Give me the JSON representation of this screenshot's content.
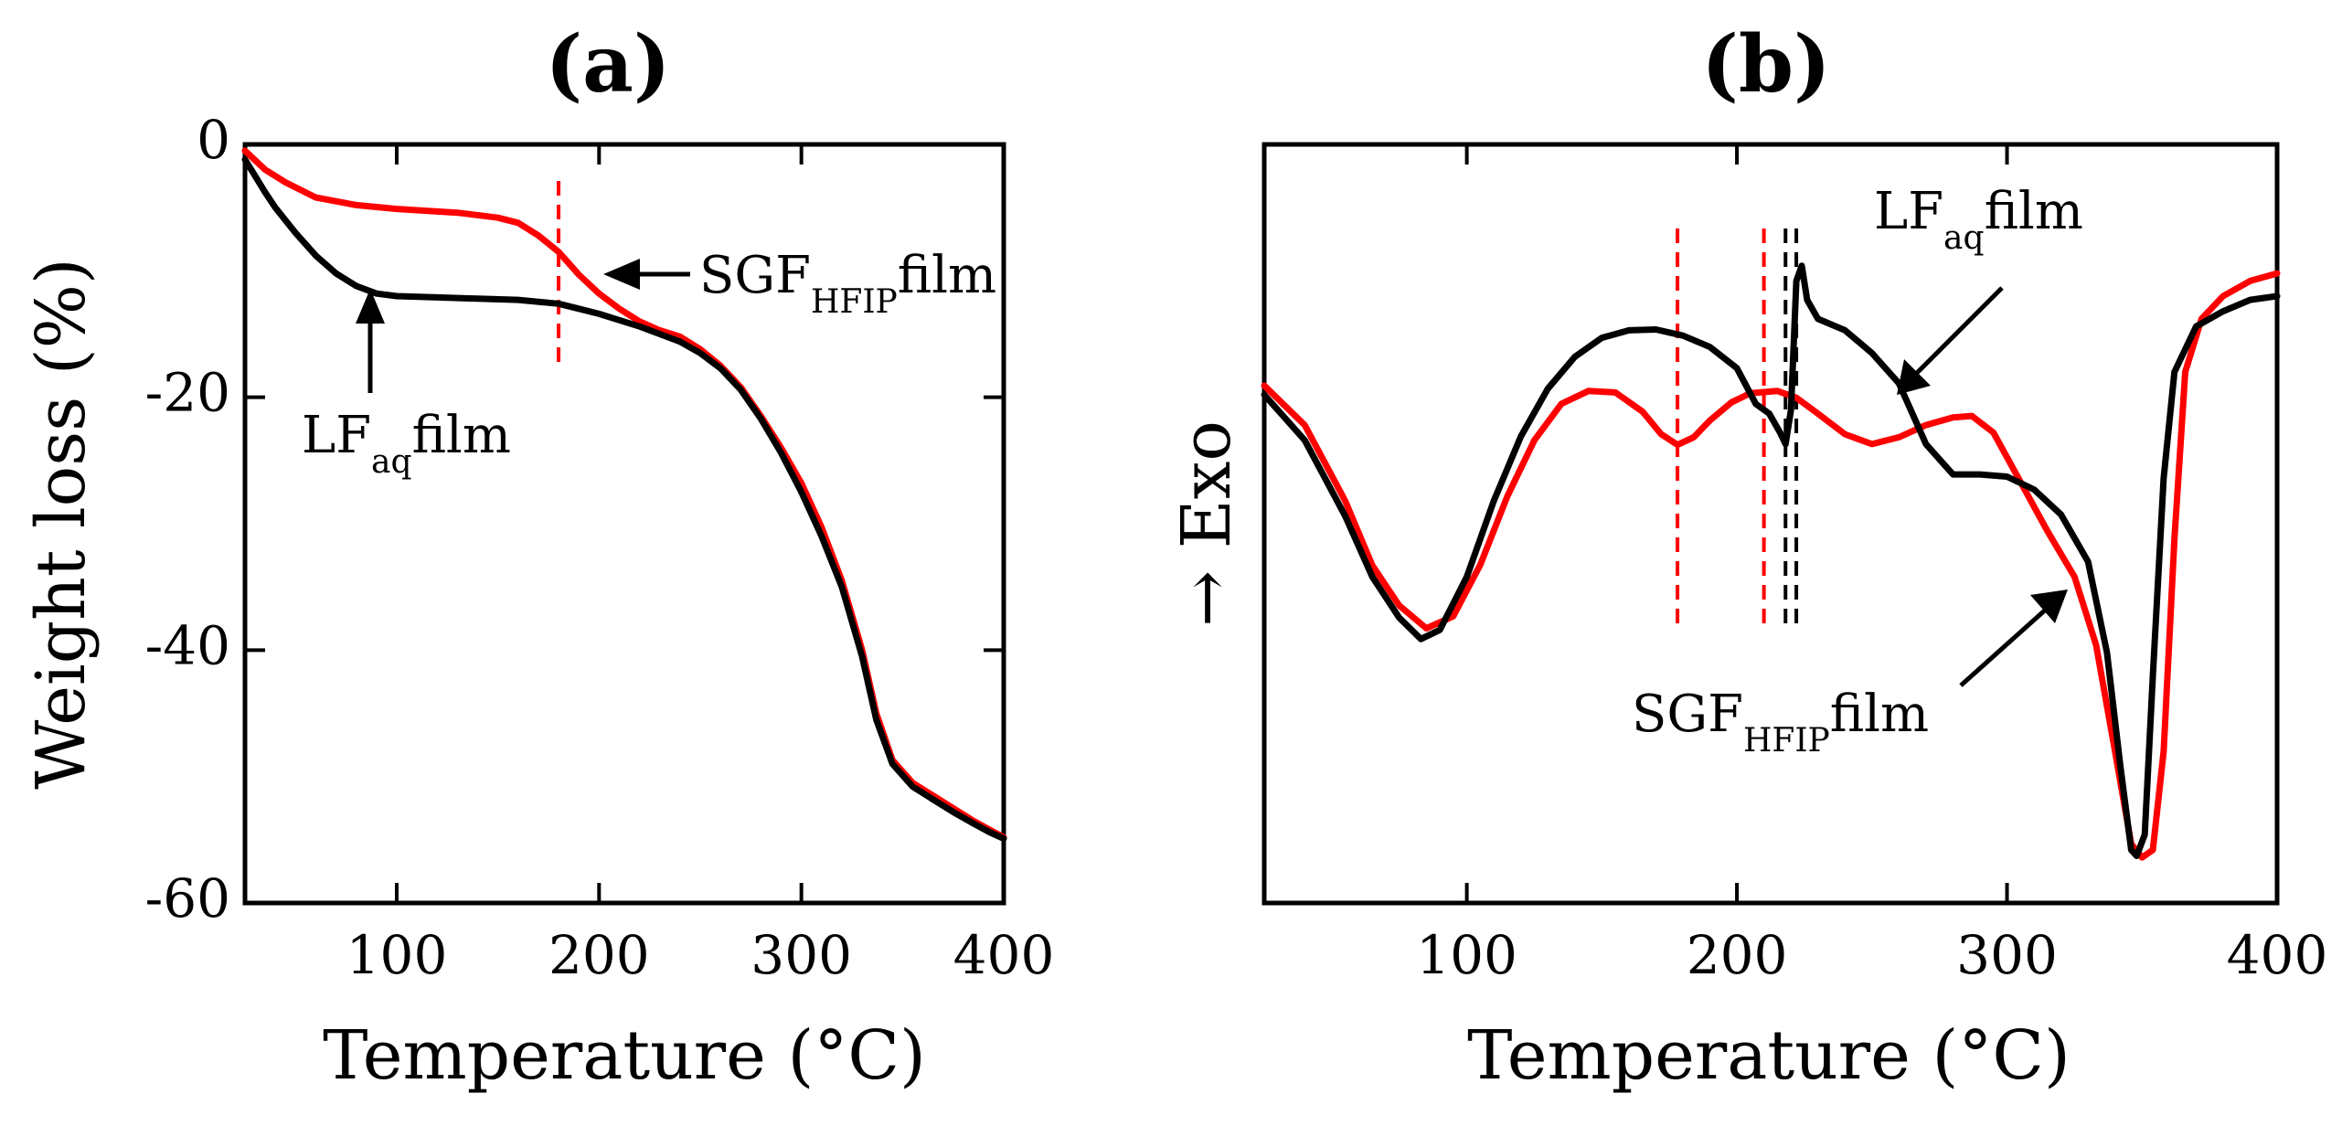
{
  "colors": {
    "sgf": "#ff0000",
    "lf": "#000000",
    "axis": "#000000",
    "background": "#ffffff"
  },
  "chart_data": [
    {
      "id": "a",
      "panel_label": "(a)",
      "type": "line",
      "xlabel": "Temperature (°C)",
      "ylabel": "Weight loss (%)",
      "xlim": [
        25,
        400
      ],
      "ylim": [
        -60,
        0
      ],
      "xticks": [
        100,
        200,
        300,
        400
      ],
      "yticks": [
        0,
        -20,
        -40,
        -60
      ],
      "grid": false,
      "series": [
        {
          "name": "SGF_HFIP film",
          "color": "#ff0000",
          "points": [
            [
              25,
              -0.5
            ],
            [
              35,
              -2
            ],
            [
              45,
              -3
            ],
            [
              60,
              -4.2
            ],
            [
              80,
              -4.8
            ],
            [
              100,
              -5.1
            ],
            [
              130,
              -5.4
            ],
            [
              150,
              -5.8
            ],
            [
              160,
              -6.2
            ],
            [
              170,
              -7.2
            ],
            [
              180,
              -8.5
            ],
            [
              190,
              -10.3
            ],
            [
              200,
              -11.8
            ],
            [
              210,
              -13
            ],
            [
              220,
              -14
            ],
            [
              230,
              -14.7
            ],
            [
              240,
              -15.2
            ],
            [
              250,
              -16.2
            ],
            [
              260,
              -17.5
            ],
            [
              270,
              -19.2
            ],
            [
              280,
              -21.5
            ],
            [
              290,
              -24
            ],
            [
              300,
              -26.8
            ],
            [
              310,
              -30.3
            ],
            [
              320,
              -34.5
            ],
            [
              330,
              -40
            ],
            [
              337,
              -45
            ],
            [
              345,
              -48.7
            ],
            [
              355,
              -50.5
            ],
            [
              365,
              -51.5
            ],
            [
              375,
              -52.5
            ],
            [
              385,
              -53.5
            ],
            [
              393,
              -54.2
            ],
            [
              400,
              -54.8
            ]
          ]
        },
        {
          "name": "LF_aq film",
          "color": "#000000",
          "points": [
            [
              25,
              -1.2
            ],
            [
              30,
              -2.5
            ],
            [
              35,
              -3.8
            ],
            [
              40,
              -5
            ],
            [
              50,
              -7
            ],
            [
              60,
              -8.8
            ],
            [
              70,
              -10.2
            ],
            [
              80,
              -11.2
            ],
            [
              90,
              -11.8
            ],
            [
              100,
              -12
            ],
            [
              120,
              -12.1
            ],
            [
              140,
              -12.2
            ],
            [
              160,
              -12.3
            ],
            [
              180,
              -12.6
            ],
            [
              190,
              -13
            ],
            [
              200,
              -13.4
            ],
            [
              210,
              -13.9
            ],
            [
              220,
              -14.4
            ],
            [
              230,
              -15
            ],
            [
              240,
              -15.6
            ],
            [
              250,
              -16.5
            ],
            [
              260,
              -17.7
            ],
            [
              270,
              -19.4
            ],
            [
              280,
              -21.7
            ],
            [
              290,
              -24.4
            ],
            [
              300,
              -27.5
            ],
            [
              310,
              -31
            ],
            [
              320,
              -35
            ],
            [
              330,
              -40.5
            ],
            [
              337,
              -45.5
            ],
            [
              345,
              -49
            ],
            [
              355,
              -50.8
            ],
            [
              365,
              -51.8
            ],
            [
              375,
              -52.8
            ],
            [
              385,
              -53.7
            ],
            [
              393,
              -54.4
            ],
            [
              400,
              -54.9
            ]
          ]
        }
      ],
      "markers": [
        {
          "x": 180,
          "color": "#ff0000",
          "style": "dashed"
        }
      ],
      "annotations": [
        {
          "main": "SGF",
          "sub": "HFIP",
          "suffix": "film"
        },
        {
          "main": "LF",
          "sub": "aq",
          "suffix": "film"
        }
      ]
    },
    {
      "id": "b",
      "panel_label": "(b)",
      "type": "line",
      "xlabel": "Temperature (°C)",
      "ylabel": "→ Exo",
      "xlim": [
        25,
        400
      ],
      "ylim": [
        0,
        1
      ],
      "xticks": [
        100,
        200,
        300,
        400
      ],
      "yticks": [],
      "grid": false,
      "series": [
        {
          "name": "SGF_HFIP film",
          "color": "#ff0000",
          "points": [
            [
              25,
              0.682
            ],
            [
              40,
              0.63
            ],
            [
              55,
              0.53
            ],
            [
              65,
              0.445
            ],
            [
              75,
              0.392
            ],
            [
              85,
              0.362
            ],
            [
              95,
              0.378
            ],
            [
              105,
              0.446
            ],
            [
              115,
              0.536
            ],
            [
              125,
              0.61
            ],
            [
              135,
              0.658
            ],
            [
              145,
              0.675
            ],
            [
              155,
              0.673
            ],
            [
              165,
              0.648
            ],
            [
              172,
              0.618
            ],
            [
              178,
              0.604
            ],
            [
              184,
              0.614
            ],
            [
              190,
              0.636
            ],
            [
              198,
              0.66
            ],
            [
              205,
              0.672
            ],
            [
              215,
              0.675
            ],
            [
              222,
              0.666
            ],
            [
              230,
              0.645
            ],
            [
              240,
              0.618
            ],
            [
              250,
              0.605
            ],
            [
              260,
              0.614
            ],
            [
              270,
              0.63
            ],
            [
              280,
              0.64
            ],
            [
              287,
              0.642
            ],
            [
              295,
              0.62
            ],
            [
              305,
              0.555
            ],
            [
              315,
              0.49
            ],
            [
              325,
              0.43
            ],
            [
              333,
              0.34
            ],
            [
              340,
              0.2
            ],
            [
              346,
              0.078
            ],
            [
              350,
              0.06
            ],
            [
              354,
              0.07
            ],
            [
              358,
              0.2
            ],
            [
              362,
              0.48
            ],
            [
              366,
              0.7
            ],
            [
              372,
              0.77
            ],
            [
              380,
              0.8
            ],
            [
              390,
              0.82
            ],
            [
              400,
              0.83
            ]
          ]
        },
        {
          "name": "LF_aq film",
          "color": "#000000",
          "points": [
            [
              25,
              0.67
            ],
            [
              40,
              0.61
            ],
            [
              55,
              0.51
            ],
            [
              65,
              0.43
            ],
            [
              75,
              0.376
            ],
            [
              83,
              0.348
            ],
            [
              90,
              0.36
            ],
            [
              100,
              0.43
            ],
            [
              110,
              0.53
            ],
            [
              120,
              0.615
            ],
            [
              130,
              0.678
            ],
            [
              140,
              0.72
            ],
            [
              150,
              0.745
            ],
            [
              160,
              0.755
            ],
            [
              170,
              0.756
            ],
            [
              180,
              0.748
            ],
            [
              190,
              0.733
            ],
            [
              200,
              0.705
            ],
            [
              207,
              0.658
            ],
            [
              212,
              0.645
            ],
            [
              216,
              0.62
            ],
            [
              218,
              0.605
            ],
            [
              220,
              0.65
            ],
            [
              222,
              0.82
            ],
            [
              224,
              0.84
            ],
            [
              226,
              0.795
            ],
            [
              230,
              0.77
            ],
            [
              240,
              0.755
            ],
            [
              250,
              0.725
            ],
            [
              260,
              0.685
            ],
            [
              270,
              0.605
            ],
            [
              280,
              0.565
            ],
            [
              290,
              0.565
            ],
            [
              300,
              0.562
            ],
            [
              310,
              0.545
            ],
            [
              320,
              0.512
            ],
            [
              330,
              0.45
            ],
            [
              337,
              0.33
            ],
            [
              342,
              0.18
            ],
            [
              346,
              0.07
            ],
            [
              348,
              0.062
            ],
            [
              351,
              0.09
            ],
            [
              354,
              0.3
            ],
            [
              358,
              0.56
            ],
            [
              362,
              0.7
            ],
            [
              370,
              0.76
            ],
            [
              380,
              0.78
            ],
            [
              390,
              0.795
            ],
            [
              400,
              0.8
            ]
          ]
        }
      ],
      "markers": [
        {
          "x": 178,
          "color": "#ff0000",
          "style": "dashed"
        },
        {
          "x": 210,
          "color": "#ff0000",
          "style": "dashed"
        },
        {
          "x": 218,
          "color": "#000000",
          "style": "dashed"
        },
        {
          "x": 222,
          "color": "#000000",
          "style": "dashed"
        }
      ],
      "annotations": [
        {
          "main": "LF",
          "sub": "aq",
          "suffix": "film"
        },
        {
          "main": "SGF",
          "sub": "HFIP",
          "suffix": "film"
        }
      ]
    }
  ]
}
